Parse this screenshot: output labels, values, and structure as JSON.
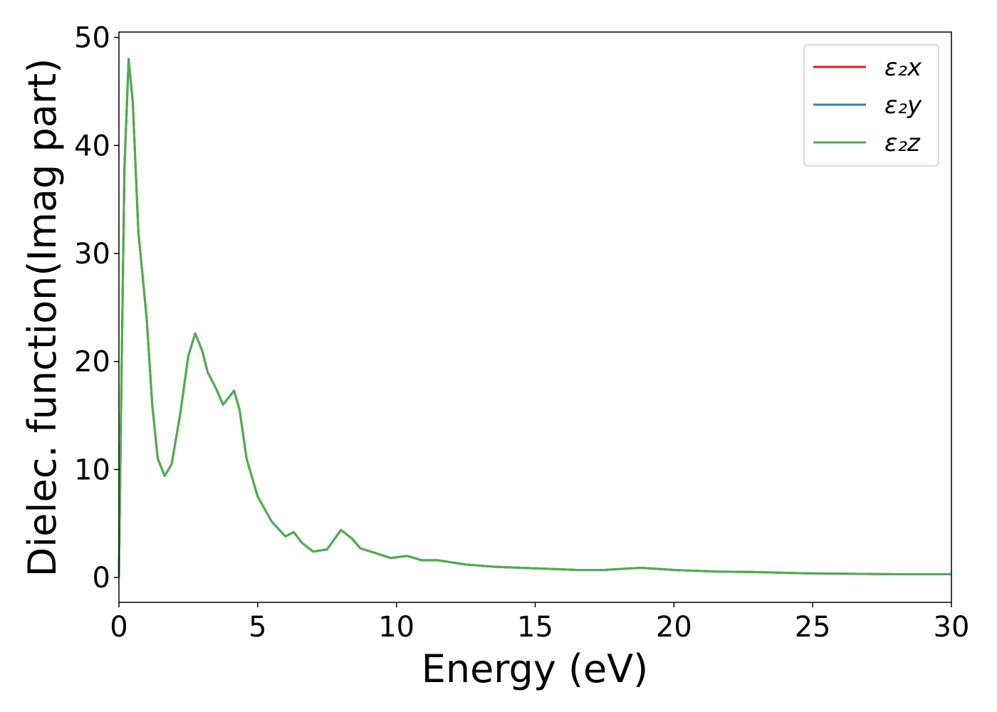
{
  "chart_data": {
    "type": "line",
    "xlabel": "Energy (eV)",
    "ylabel": "Dielec. function(Imag part)",
    "x": [
      0,
      0.1,
      0.2,
      0.35,
      0.5,
      0.7,
      1.0,
      1.2,
      1.4,
      1.65,
      1.9,
      2.2,
      2.5,
      2.75,
      3.0,
      3.2,
      3.5,
      3.75,
      4.0,
      4.15,
      4.35,
      4.6,
      5.0,
      5.5,
      6.0,
      6.3,
      6.6,
      7.0,
      7.5,
      8.0,
      8.4,
      8.7,
      9.2,
      9.8,
      10.4,
      10.9,
      11.5,
      12.5,
      13.5,
      14.5,
      15.5,
      16.5,
      17.5,
      18.8,
      20,
      21.5,
      23,
      24.5,
      26,
      28,
      30
    ],
    "series": [
      {
        "name": "ε₂x",
        "color": "#e41a1c",
        "values": [
          0,
          20,
          38,
          48,
          44,
          32,
          24,
          16,
          11,
          9.4,
          10.5,
          15,
          20.5,
          22.6,
          21,
          19,
          17.5,
          16,
          16.8,
          17.3,
          15.5,
          11,
          7.5,
          5.2,
          3.8,
          4.2,
          3.2,
          2.4,
          2.6,
          4.4,
          3.6,
          2.7,
          2.3,
          1.8,
          2.0,
          1.6,
          1.6,
          1.2,
          1.0,
          0.9,
          0.8,
          0.7,
          0.7,
          0.9,
          0.7,
          0.55,
          0.5,
          0.4,
          0.35,
          0.3,
          0.3
        ]
      },
      {
        "name": "ε₂y",
        "color": "#377eb8",
        "values": [
          0,
          20,
          38,
          48,
          44,
          32,
          24,
          16,
          11,
          9.4,
          10.5,
          15,
          20.5,
          22.6,
          21,
          19,
          17.5,
          16,
          16.8,
          17.3,
          15.5,
          11,
          7.5,
          5.2,
          3.8,
          4.2,
          3.2,
          2.4,
          2.6,
          4.4,
          3.6,
          2.7,
          2.3,
          1.8,
          2.0,
          1.6,
          1.6,
          1.2,
          1.0,
          0.9,
          0.8,
          0.7,
          0.7,
          0.9,
          0.7,
          0.55,
          0.5,
          0.4,
          0.35,
          0.3,
          0.3
        ]
      },
      {
        "name": "ε₂z",
        "color": "#4daf4a",
        "values": [
          0,
          20,
          38,
          48,
          44,
          32,
          24,
          16,
          11,
          9.4,
          10.5,
          15,
          20.5,
          22.6,
          21,
          19,
          17.5,
          16,
          16.8,
          17.3,
          15.5,
          11,
          7.5,
          5.2,
          3.8,
          4.2,
          3.2,
          2.4,
          2.6,
          4.4,
          3.6,
          2.7,
          2.3,
          1.8,
          2.0,
          1.6,
          1.6,
          1.2,
          1.0,
          0.9,
          0.8,
          0.7,
          0.7,
          0.9,
          0.7,
          0.55,
          0.5,
          0.4,
          0.35,
          0.3,
          0.3
        ]
      }
    ],
    "xlim": [
      0,
      30
    ],
    "xticks": [
      0,
      5,
      10,
      15,
      20,
      25,
      30
    ],
    "ylim": [
      -2.3,
      50.5
    ],
    "yticks": [
      0,
      10,
      20,
      30,
      40,
      50
    ],
    "grid": false,
    "legend": "upper right"
  }
}
